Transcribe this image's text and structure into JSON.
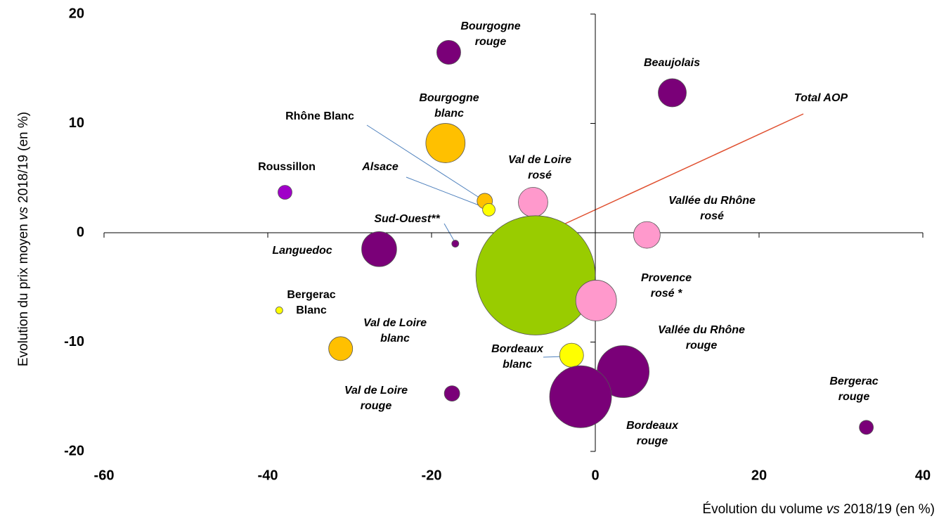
{
  "chart_data": {
    "type": "bubble",
    "xlabel": [
      "Évolution du volume ",
      "vs",
      " 2018/19 (en %)"
    ],
    "ylabel": [
      "Evolution du prix moyen ",
      "vs",
      " 2018/19 (en %)"
    ],
    "xlim": [
      -60,
      40
    ],
    "xticks": [
      -60,
      -40,
      -20,
      0,
      20,
      40
    ],
    "ylim": [
      -20,
      20
    ],
    "yticks": [
      -20,
      -10,
      0,
      10,
      20
    ],
    "labels": [
      [
        "Bourgogne",
        "rouge"
      ],
      [
        "Beaujolais"
      ],
      [
        "Bourgogne",
        "blanc"
      ],
      [
        "Rhône Blanc"
      ],
      [
        "Alsace"
      ],
      [
        "Roussillon"
      ],
      [
        "Val de Loire",
        "rosé"
      ],
      [
        "Vallée du Rhône",
        "rosé"
      ],
      [
        "Sud-Ouest**"
      ],
      [
        "Languedoc"
      ],
      [
        "Total AOP"
      ],
      [
        "Provence",
        "rosé *"
      ],
      [
        "Bergerac",
        "Blanc"
      ],
      [
        "Val de Loire",
        "blanc"
      ],
      [
        "Bordeaux",
        "blanc"
      ],
      [
        "Vallée du Rhône",
        "rouge"
      ],
      [
        "Bordeaux",
        "rouge"
      ],
      [
        "Val de Loire",
        "rouge"
      ],
      [
        "Bergerac",
        "rouge"
      ]
    ],
    "x": [
      -17.9,
      9.4,
      -18.3,
      -13.5,
      -13.0,
      -37.9,
      -7.6,
      6.3,
      -17.1,
      -26.4,
      -7.3,
      0.1,
      -38.6,
      -31.1,
      -2.9,
      3.4,
      -1.8,
      -17.5,
      33.1
    ],
    "y": [
      16.5,
      12.8,
      8.2,
      2.9,
      2.1,
      3.7,
      2.8,
      -0.2,
      -1.0,
      -1.5,
      -3.9,
      -6.2,
      -7.1,
      -10.6,
      -11.2,
      -12.7,
      -15.0,
      -14.7,
      -17.8
    ],
    "sizes": [
      2.9,
      4,
      7.8,
      1.2,
      0.8,
      1,
      4.4,
      3.6,
      0.25,
      6.2,
      72,
      8.4,
      0.25,
      2.9,
      2.9,
      13.7,
      19.4,
      1.2,
      1
    ],
    "colors": [
      "#7a0078",
      "#7a0078",
      "#ffc000",
      "#ffc000",
      "#ffff00",
      "#a000c8",
      "#ff99cc",
      "#ff99cc",
      "#7a0078",
      "#7a0078",
      "#99cc00",
      "#ff99cc",
      "#ffff00",
      "#ffc000",
      "#ffff00",
      "#7a0078",
      "#7a0078",
      "#7a0078",
      "#7a0078"
    ]
  }
}
